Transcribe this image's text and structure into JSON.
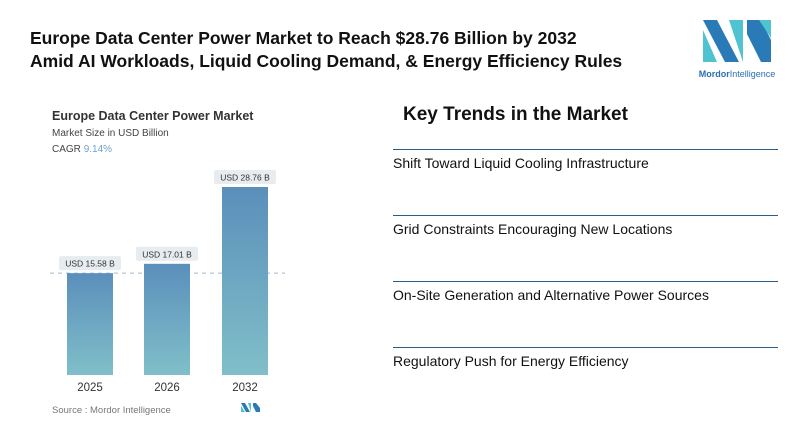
{
  "headline": {
    "line1": "Europe Data Center Power Market to Reach $28.76 Billion by 2032",
    "line2": "Amid AI Workloads, Liquid Cooling Demand, & Energy Efficiency Rules"
  },
  "logo": {
    "brand_bold": "Mordor",
    "brand_rest": "Intelligence"
  },
  "chart_data": {
    "type": "bar",
    "title": "Europe Data Center Power Market",
    "subtitle": "Market Size in USD Billion",
    "cagr_label": "CAGR",
    "cagr_value": "9.14%",
    "categories": [
      "2025",
      "2026",
      "2032"
    ],
    "values": [
      15.58,
      17.01,
      28.76
    ],
    "data_labels": [
      "USD 15.58 B",
      "USD 17.01 B",
      "USD 28.76 B"
    ],
    "ylim": [
      0,
      30
    ],
    "reference_line": 15.58,
    "bar_color_top": "#5b8fbb",
    "bar_color_bottom": "#80bfc9",
    "source": "Source :  Mordor Intelligence"
  },
  "trends": {
    "title": "Key Trends in the Market",
    "items": [
      "Shift Toward Liquid Cooling Infrastructure",
      "Grid Constraints Encouraging New Locations",
      "On-Site Generation and Alternative Power Sources",
      "Regulatory Push for Energy Efficiency"
    ]
  }
}
